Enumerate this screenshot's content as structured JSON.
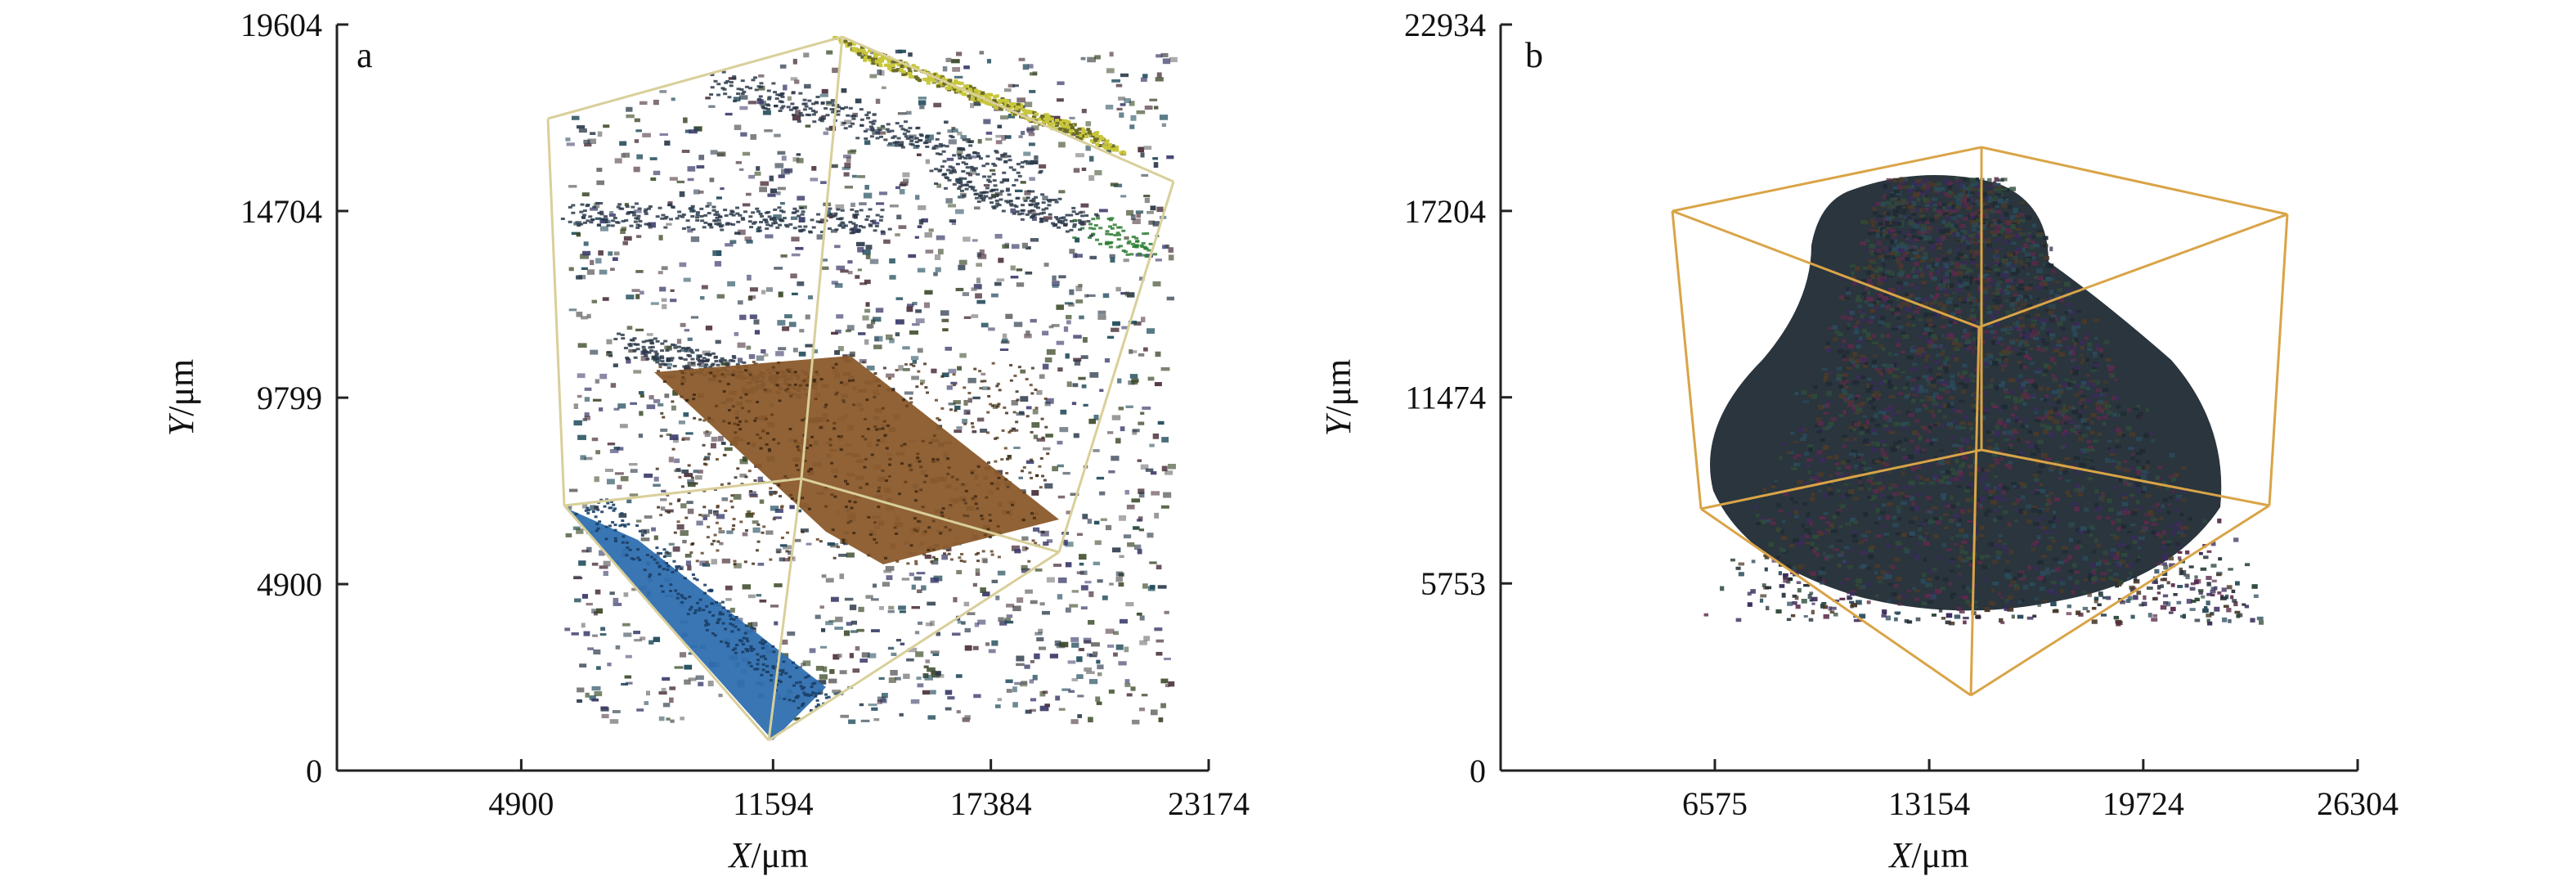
{
  "chart_data": [
    {
      "type": "scatter",
      "panel_label": "a",
      "xlabel_var": "X",
      "xlabel_unit": "/μm",
      "ylabel_var": "Y",
      "ylabel_unit": "/μm",
      "xlim": [
        0,
        23174
      ],
      "ylim": [
        0,
        19604
      ],
      "x_ticks": [
        4900,
        11594,
        17384,
        23174
      ],
      "y_ticks": [
        0,
        4900,
        9799,
        14704,
        19604
      ],
      "box_color": "#d9cf9a",
      "colors": {
        "brown_plane": "#8a5a2b",
        "blue_plane": "#2f6fb0",
        "yellow_plane": "#c8c63a",
        "green_trace": "#2e7d32",
        "scatter_dark": "#2b3a4a"
      }
    },
    {
      "type": "scatter",
      "panel_label": "b",
      "xlabel_var": "X",
      "xlabel_unit": "/μm",
      "ylabel_var": "Y",
      "ylabel_unit": "/μm",
      "xlim": [
        0,
        26304
      ],
      "ylim": [
        0,
        22934
      ],
      "x_ticks": [
        6575,
        13154,
        19724,
        26304
      ],
      "y_ticks": [
        0,
        5753,
        11474,
        17204,
        22934
      ],
      "box_color": "#d9a447",
      "colors": {
        "cloud_base": "#1f2a33",
        "cloud_mix": [
          "#3a2b5a",
          "#2f4a3a",
          "#5a2a4a",
          "#2a4a5a",
          "#4a3a2a"
        ]
      }
    }
  ]
}
